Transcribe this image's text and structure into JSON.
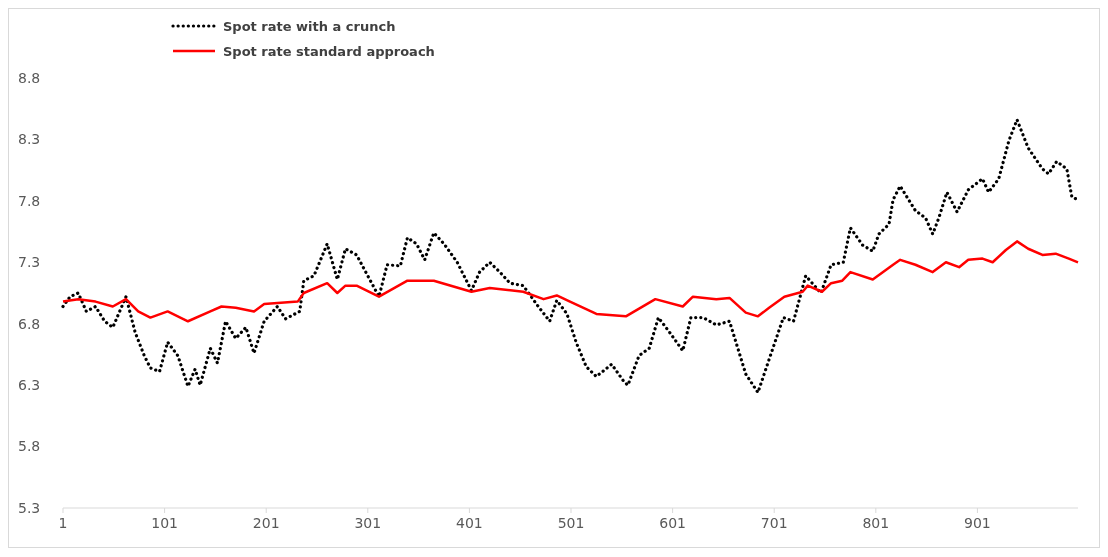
{
  "chart_data": {
    "type": "line",
    "xlim": [
      1,
      1000
    ],
    "xticks": [
      1,
      101,
      201,
      301,
      401,
      501,
      601,
      701,
      801,
      901
    ],
    "ylim": [
      5.3,
      8.8
    ],
    "yticks": [
      5.3,
      5.8,
      6.3,
      6.8,
      7.3,
      7.8,
      8.3,
      8.8
    ],
    "grid": false,
    "legend": "top",
    "marker": "none",
    "series": [
      {
        "name": "Spot rate with a crunch",
        "color": "#000000",
        "line_style": "dotted",
        "x": [
          1,
          8,
          16,
          24,
          33,
          42,
          50,
          63,
          72,
          81,
          87,
          96,
          104,
          114,
          124,
          131,
          136,
          146,
          153,
          161,
          171,
          181,
          189,
          199,
          212,
          220,
          234,
          238,
          248,
          261,
          271,
          279,
          290,
          312,
          320,
          333,
          340,
          349,
          357,
          366,
          376,
          389,
          403,
          411,
          421,
          431,
          441,
          454,
          467,
          480,
          487,
          497,
          506,
          516,
          526,
          541,
          553,
          557,
          568,
          578,
          587,
          598,
          611,
          619,
          631,
          644,
          657,
          673,
          685,
          696,
          710,
          720,
          732,
          747,
          757,
          769,
          776,
          788,
          798,
          804,
          814,
          818,
          825,
          840,
          850,
          857,
          863,
          871,
          881,
          892,
          906,
          912,
          922,
          932,
          940,
          951,
          965,
          971,
          979,
          989,
          994,
          1000
        ],
        "values": [
          6.94,
          7.02,
          7.05,
          6.9,
          6.94,
          6.82,
          6.77,
          7.02,
          6.73,
          6.54,
          6.44,
          6.41,
          6.65,
          6.54,
          6.29,
          6.43,
          6.3,
          6.6,
          6.48,
          6.82,
          6.68,
          6.77,
          6.56,
          6.82,
          6.94,
          6.84,
          6.9,
          7.15,
          7.19,
          7.45,
          7.16,
          7.41,
          7.36,
          7.02,
          7.28,
          7.27,
          7.5,
          7.45,
          7.32,
          7.54,
          7.45,
          7.3,
          7.07,
          7.22,
          7.3,
          7.22,
          7.13,
          7.11,
          6.96,
          6.82,
          6.99,
          6.88,
          6.65,
          6.45,
          6.37,
          6.47,
          6.33,
          6.3,
          6.54,
          6.6,
          6.85,
          6.73,
          6.58,
          6.85,
          6.85,
          6.79,
          6.82,
          6.39,
          6.24,
          6.51,
          6.85,
          6.82,
          7.19,
          7.05,
          7.28,
          7.3,
          7.58,
          7.44,
          7.39,
          7.53,
          7.61,
          7.81,
          7.92,
          7.72,
          7.66,
          7.53,
          7.66,
          7.87,
          7.71,
          7.89,
          7.98,
          7.87,
          7.98,
          8.29,
          8.46,
          8.23,
          8.06,
          8.02,
          8.12,
          8.06,
          7.83,
          7.81
        ]
      },
      {
        "name": "Spot rate standard approach",
        "color": "#ff0000",
        "line_style": "solid",
        "x": [
          1,
          16,
          33,
          50,
          63,
          75,
          87,
          104,
          124,
          146,
          157,
          171,
          189,
          199,
          232,
          238,
          261,
          271,
          279,
          290,
          312,
          340,
          366,
          403,
          421,
          454,
          474,
          487,
          500,
          526,
          555,
          584,
          611,
          621,
          644,
          657,
          673,
          685,
          696,
          711,
          729,
          734,
          748,
          757,
          768,
          776,
          798,
          818,
          825,
          840,
          857,
          870,
          883,
          892,
          906,
          916,
          929,
          940,
          951,
          965,
          978,
          991,
          1000
        ],
        "values": [
          6.98,
          7.0,
          6.98,
          6.94,
          7.0,
          6.9,
          6.85,
          6.9,
          6.82,
          6.9,
          6.94,
          6.93,
          6.9,
          6.96,
          6.98,
          7.05,
          7.13,
          7.05,
          7.11,
          7.11,
          7.02,
          7.15,
          7.15,
          7.06,
          7.09,
          7.06,
          7.0,
          7.03,
          6.98,
          6.88,
          6.86,
          7.0,
          6.94,
          7.02,
          7.0,
          7.01,
          6.89,
          6.86,
          6.93,
          7.02,
          7.06,
          7.11,
          7.06,
          7.13,
          7.15,
          7.22,
          7.16,
          7.28,
          7.32,
          7.28,
          7.22,
          7.3,
          7.26,
          7.32,
          7.33,
          7.3,
          7.4,
          7.47,
          7.41,
          7.36,
          7.37,
          7.33,
          7.3
        ]
      }
    ]
  }
}
